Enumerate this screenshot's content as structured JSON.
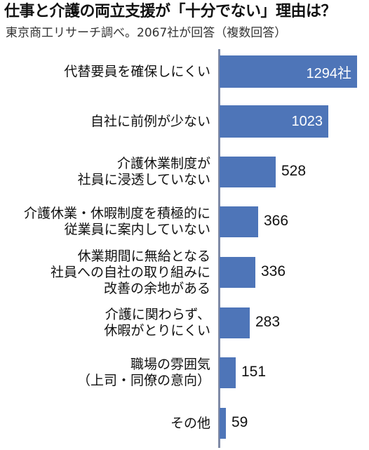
{
  "title": "仕事と介護の両立支援が「十分でない」理由は？",
  "subtitle": "東京商工リサーチ調べ。2067社が回答（複数回答）",
  "chart_data": {
    "type": "bar",
    "orientation": "horizontal",
    "title": "仕事と介護の両立支援が「十分でない」理由は？",
    "subtitle": "東京商工リサーチ調べ。2067社が回答（複数回答）",
    "unit": "社",
    "categories": [
      [
        "代替要員を確保しにくい"
      ],
      [
        "自社に前例が少ない"
      ],
      [
        "介護休業制度が",
        "社員に浸透していない"
      ],
      [
        "介護休業・休暇制度を積極的に",
        "従業員に案内していない"
      ],
      [
        "休業期間に無給となる",
        "社員への自社の取り組みに",
        "改善の余地がある"
      ],
      [
        "介護に関わらず、",
        "休暇がとりにくい"
      ],
      [
        "職場の雰囲気",
        "（上司・同僚の意向）"
      ],
      [
        "その他"
      ]
    ],
    "values": [
      1294,
      1023,
      528,
      366,
      336,
      283,
      151,
      59
    ],
    "value_labels": [
      "1294社",
      "1023",
      "528",
      "366",
      "336",
      "283",
      "151",
      "59"
    ],
    "grid": false,
    "bar_color": "#4e75b8"
  }
}
